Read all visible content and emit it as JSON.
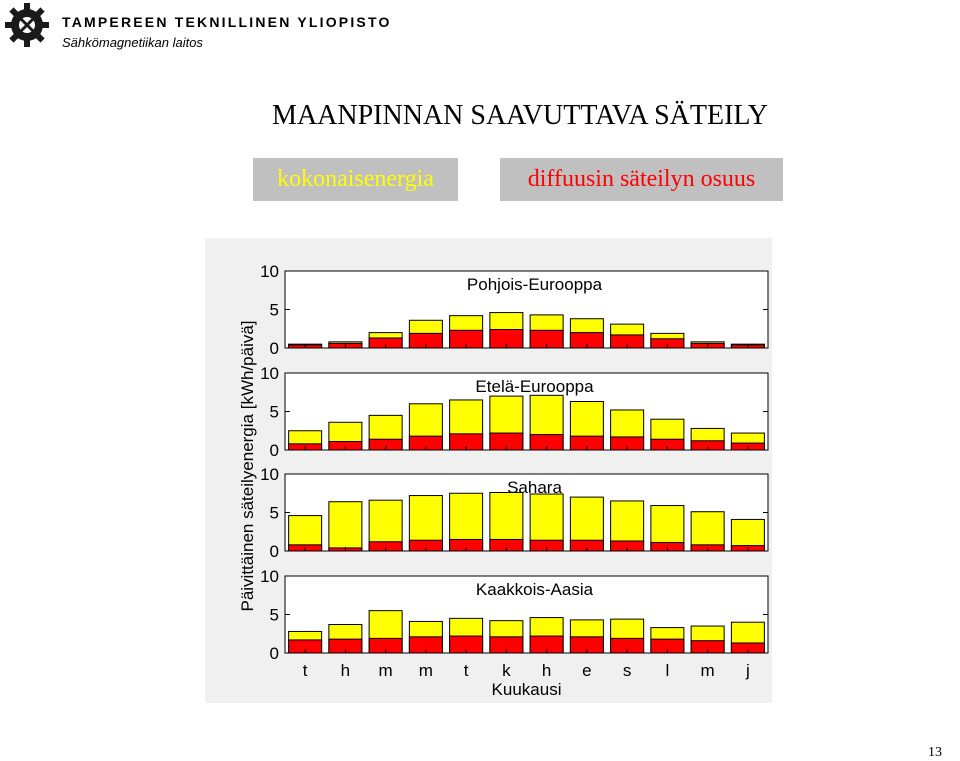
{
  "header": {
    "university": "TAMPEREEN TEKNILLINEN YLIOPISTO",
    "department": "Sähkömagnetiikan laitos"
  },
  "slide": {
    "title": "MAANPINNAN SAAVUTTAVA SÄTEILY",
    "page_number": "13"
  },
  "legend": {
    "total_label": "kokonaisenergia",
    "diffuse_label": "diffuusin säteilyn osuus"
  },
  "colors": {
    "total": "#ffff00",
    "diffuse": "#ff0000",
    "legend_bg": "#c0c0c0",
    "plot_bg": "#f0f0f0"
  },
  "chart_data": {
    "type": "bar",
    "stacked": "overlay",
    "ylabel": "Päivittäinen säteilyenergia [kWh/päivä]",
    "xlabel": "Kuukausi",
    "categories": [
      "t",
      "h",
      "m",
      "m",
      "t",
      "k",
      "h",
      "e",
      "s",
      "l",
      "m",
      "j"
    ],
    "ylim": [
      0,
      10
    ],
    "yticks": [
      "0",
      "5",
      "10"
    ],
    "panels": [
      {
        "title": "Pohjois-Eurooppa",
        "total": [
          0.5,
          0.8,
          2.0,
          3.6,
          4.2,
          4.6,
          4.3,
          3.8,
          3.1,
          1.9,
          0.8,
          0.5
        ],
        "diffuse": [
          0.4,
          0.6,
          1.3,
          1.9,
          2.3,
          2.4,
          2.3,
          2.0,
          1.7,
          1.2,
          0.6,
          0.4
        ]
      },
      {
        "title": "Etelä-Eurooppa",
        "total": [
          2.5,
          3.6,
          4.5,
          6.0,
          6.5,
          7.0,
          7.1,
          6.3,
          5.2,
          4.0,
          2.8,
          2.2
        ],
        "diffuse": [
          0.8,
          1.1,
          1.4,
          1.8,
          2.1,
          2.2,
          2.0,
          1.8,
          1.7,
          1.4,
          1.2,
          0.9
        ]
      },
      {
        "title": "Sahara",
        "total": [
          4.6,
          6.4,
          6.6,
          7.2,
          7.5,
          7.6,
          7.4,
          7.0,
          6.5,
          5.9,
          5.1,
          4.1
        ],
        "diffuse": [
          0.8,
          0.4,
          1.2,
          1.4,
          1.5,
          1.5,
          1.4,
          1.4,
          1.3,
          1.1,
          0.8,
          0.7
        ]
      },
      {
        "title": "Kaakkois-Aasia",
        "total": [
          2.8,
          3.7,
          5.5,
          4.1,
          4.5,
          4.2,
          4.6,
          4.3,
          4.4,
          3.3,
          3.5,
          4.0
        ],
        "diffuse": [
          1.7,
          1.8,
          1.9,
          2.1,
          2.2,
          2.1,
          2.2,
          2.1,
          1.9,
          1.8,
          1.6,
          1.3
        ]
      }
    ]
  }
}
